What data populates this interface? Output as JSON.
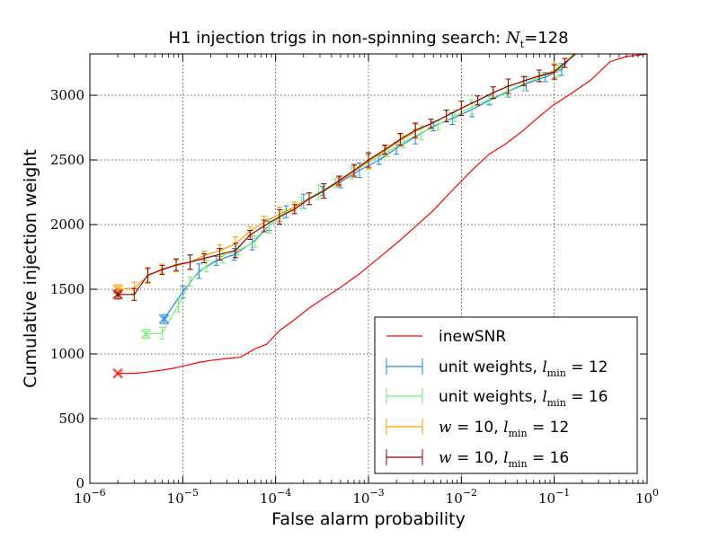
{
  "chart_data": {
    "type": "line",
    "title": {
      "prefix": "H1 injection trigs in non-spinning search: ",
      "math_var": "N",
      "math_sub": "t",
      "suffix": "=128"
    },
    "xlabel": "False alarm probability",
    "ylabel": "Cumulative injection weight",
    "x_scale": "log",
    "xlim": [
      1e-06,
      1
    ],
    "ylim": [
      0,
      3320
    ],
    "grid": true,
    "legend_position": "lower right",
    "x_ticks": [
      {
        "value": 1e-06,
        "base": "10",
        "exp": "−6"
      },
      {
        "value": 1e-05,
        "base": "10",
        "exp": "−5"
      },
      {
        "value": 0.0001,
        "base": "10",
        "exp": "−4"
      },
      {
        "value": 0.001,
        "base": "10",
        "exp": "−3"
      },
      {
        "value": 0.01,
        "base": "10",
        "exp": "−2"
      },
      {
        "value": 0.1,
        "base": "10",
        "exp": "−1"
      },
      {
        "value": 1,
        "base": "10",
        "exp": "0"
      }
    ],
    "y_ticks": [
      0,
      500,
      1000,
      1500,
      2000,
      2500,
      3000
    ],
    "series": [
      {
        "name": "inewSNR",
        "color": "#ff0000",
        "errorbars": false,
        "marker_x": 2e-06,
        "x": [
          2e-06,
          3e-06,
          4.2e-06,
          6e-06,
          8e-06,
          1.1e-05,
          1.5e-05,
          2e-05,
          3e-05,
          4.2e-05,
          6e-05,
          8e-05,
          0.00011,
          0.00016,
          0.00023,
          0.00033,
          0.0005,
          0.0008,
          0.0013,
          0.002,
          0.0032,
          0.005,
          0.008,
          0.013,
          0.02,
          0.03,
          0.045,
          0.07,
          0.1,
          0.15,
          0.25,
          0.4,
          0.6,
          0.8,
          1.0
        ],
        "y": [
          850,
          850,
          860,
          875,
          890,
          912,
          935,
          950,
          965,
          975,
          1040,
          1075,
          1180,
          1265,
          1355,
          1430,
          1515,
          1620,
          1745,
          1855,
          1985,
          2110,
          2265,
          2420,
          2545,
          2625,
          2720,
          2840,
          2930,
          3010,
          3120,
          3260,
          3300,
          3310,
          3320
        ]
      },
      {
        "name": "unit weights, l_min = 12",
        "label_prefix": "unit weights, ",
        "var": "l",
        "sub": "min",
        "value_text": " = 12",
        "color": "#1e88e5",
        "errorbars": true,
        "marker_x": 6.3e-06,
        "x": [
          6.3e-06,
          1e-05,
          1.5e-05,
          2.3e-05,
          3.6e-05,
          5.6e-05,
          8.5e-05,
          0.00013,
          0.0002,
          0.00032,
          0.0005,
          0.0008,
          0.0013,
          0.002,
          0.0032,
          0.005,
          0.008,
          0.013,
          0.02,
          0.032,
          0.05,
          0.08,
          0.12,
          0.16
        ],
        "y": [
          1270,
          1480,
          1640,
          1720,
          1770,
          1860,
          1990,
          2100,
          2180,
          2260,
          2330,
          2420,
          2500,
          2590,
          2680,
          2760,
          2820,
          2890,
          2960,
          3030,
          3090,
          3140,
          3200,
          3320
        ]
      },
      {
        "name": "unit weights, l_min = 16",
        "label_prefix": "unit weights, ",
        "var": "l",
        "sub": "min",
        "value_text": " = 16",
        "color": "#77ee77",
        "errorbars": true,
        "marker_x": 4e-06,
        "x": [
          4e-06,
          6e-06,
          9e-06,
          1.2e-05,
          1.8e-05,
          2.7e-05,
          4e-05,
          6e-05,
          8.5e-05,
          0.00012,
          0.00019,
          0.00029,
          0.00044,
          0.00066,
          0.001,
          0.0016,
          0.0024,
          0.0037,
          0.0056,
          0.0085,
          0.013,
          0.02,
          0.031,
          0.047,
          0.07,
          0.11,
          0.16
        ],
        "y": [
          1155,
          1160,
          1380,
          1560,
          1680,
          1760,
          1800,
          1870,
          1990,
          2080,
          2170,
          2250,
          2320,
          2400,
          2480,
          2560,
          2640,
          2710,
          2770,
          2840,
          2910,
          2970,
          3030,
          3090,
          3140,
          3190,
          3320
        ]
      },
      {
        "name": "w = 10, l_min = 12",
        "pre_var": "w",
        "label_mid": " = 10, ",
        "var": "l",
        "sub": "min",
        "value_text": " = 12",
        "color": "#ff9900",
        "errorbars": true,
        "marker_x": 2e-06,
        "x": [
          2e-06,
          3e-06,
          4.2e-06,
          6e-06,
          8.5e-06,
          1.2e-05,
          1.7e-05,
          2.5e-05,
          3.7e-05,
          5.3e-05,
          7.5e-05,
          0.00011,
          0.00016,
          0.00023,
          0.00033,
          0.00048,
          0.0007,
          0.001,
          0.0015,
          0.0022,
          0.0032,
          0.0047,
          0.0069,
          0.01,
          0.015,
          0.022,
          0.032,
          0.047,
          0.069,
          0.1,
          0.13,
          0.17
        ],
        "y": [
          1500,
          1510,
          1600,
          1660,
          1680,
          1710,
          1760,
          1800,
          1850,
          1950,
          2020,
          2080,
          2140,
          2200,
          2260,
          2330,
          2410,
          2490,
          2570,
          2650,
          2720,
          2780,
          2840,
          2900,
          2960,
          3020,
          3070,
          3110,
          3150,
          3190,
          3250,
          3320
        ]
      },
      {
        "name": "w = 10, l_min = 16",
        "pre_var": "w",
        "label_mid": " = 10, ",
        "var": "l",
        "sub": "min",
        "value_text": " = 16",
        "color": "#8b0000",
        "errorbars": true,
        "marker_x": 2e-06,
        "x": [
          2e-06,
          3e-06,
          4.2e-06,
          6e-06,
          8.5e-06,
          1.2e-05,
          1.7e-05,
          2.5e-05,
          3.7e-05,
          5.3e-05,
          7.5e-05,
          0.00011,
          0.00016,
          0.00023,
          0.00033,
          0.00048,
          0.0007,
          0.001,
          0.0015,
          0.0022,
          0.0032,
          0.0047,
          0.0069,
          0.01,
          0.015,
          0.022,
          0.032,
          0.047,
          0.069,
          0.1,
          0.13,
          0.17
        ],
        "y": [
          1460,
          1460,
          1610,
          1650,
          1690,
          1710,
          1740,
          1770,
          1800,
          1920,
          1990,
          2060,
          2120,
          2200,
          2260,
          2340,
          2420,
          2500,
          2580,
          2660,
          2730,
          2780,
          2840,
          2900,
          2960,
          3020,
          3070,
          3110,
          3150,
          3180,
          3250,
          3320
        ]
      }
    ]
  }
}
